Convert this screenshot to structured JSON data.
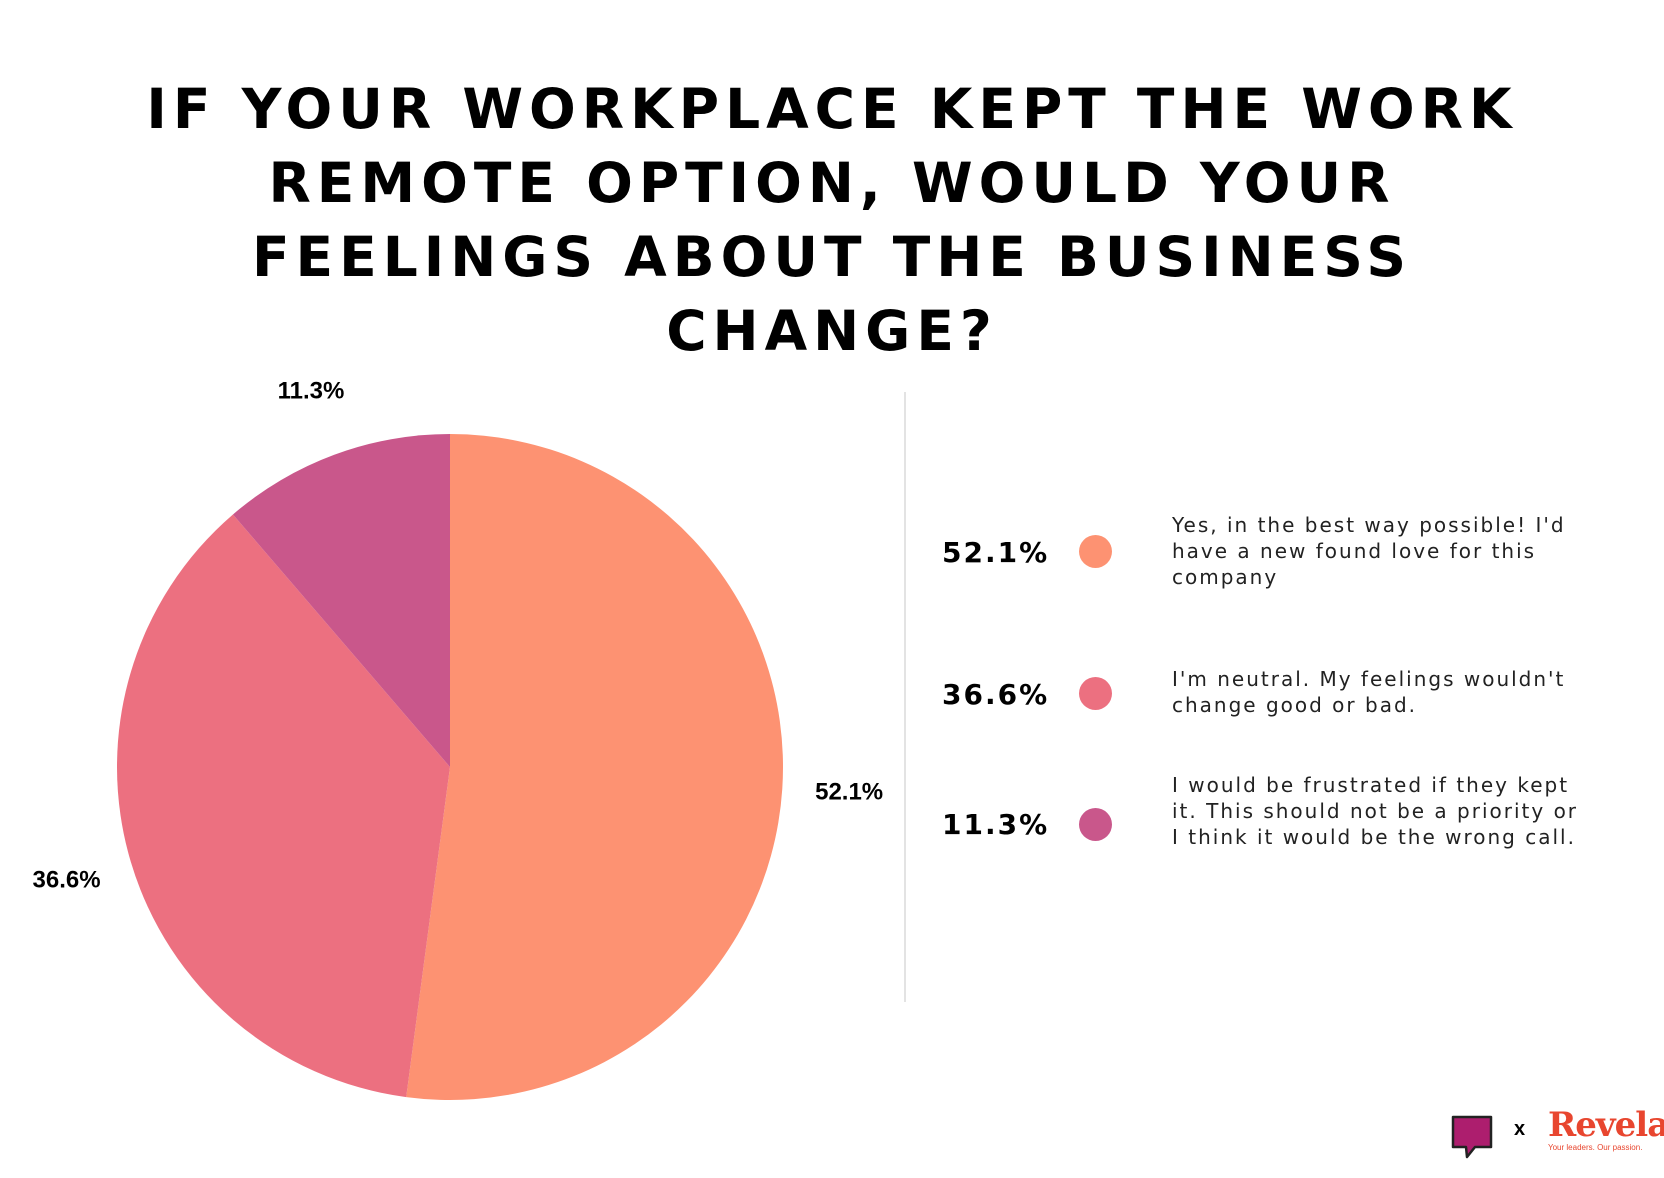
{
  "chart_data": {
    "type": "pie",
    "title": "IF YOUR WORKPLACE KEPT THE WORK REMOTE OPTION, WOULD YOUR FEELINGS ABOUT THE BUSINESS CHANGE?",
    "slices": [
      {
        "label": "Yes, in the best way possible! I'd have a new found love for this company",
        "value": 52.1,
        "value_label": "52.1%",
        "color": "#fd9272"
      },
      {
        "label": "I'm neutral. My feelings wouldn't change good or bad.",
        "value": 36.6,
        "value_label": "36.6%",
        "color": "#ec7080"
      },
      {
        "label": "I would be frustrated if they kept it. This should not be a priority or I think it would be the wrong call.",
        "value": 11.3,
        "value_label": "11.3%",
        "color": "#c9578b"
      }
    ],
    "start_angle_deg": 0,
    "direction": "clockwise",
    "legend_position": "right"
  },
  "footer": {
    "separator": "x",
    "brand_name": "Revela",
    "brand_tagline": "Your leaders. Our passion.",
    "icon": "speech-bubble-icon",
    "icon_color": "#ad1e6e"
  }
}
